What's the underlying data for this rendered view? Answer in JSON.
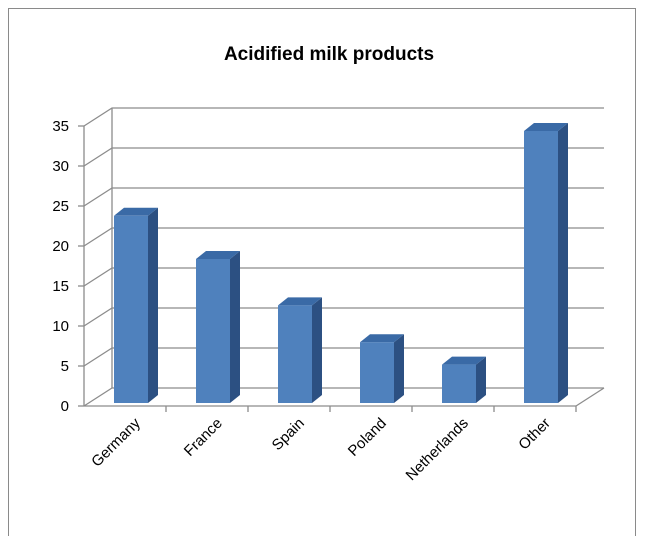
{
  "chart_data": {
    "type": "bar",
    "title": "Acidified milk products",
    "categories": [
      "Germany",
      "France",
      "Spain",
      "Poland",
      "Netherlands",
      "Other"
    ],
    "values": [
      23.4,
      18,
      12.2,
      7.6,
      4.8,
      34
    ],
    "ylim": [
      0,
      35
    ],
    "yticks": [
      "0",
      "5",
      "10",
      "15",
      "20",
      "25",
      "30",
      "35"
    ],
    "xlabel": "",
    "ylabel": "",
    "grid": true,
    "style": "3d-column",
    "colors": {
      "bar_front": "#4f81bd",
      "bar_side": "#2c5082",
      "bar_top": "#3a6aa6",
      "grid": "#8c8c8c"
    }
  }
}
